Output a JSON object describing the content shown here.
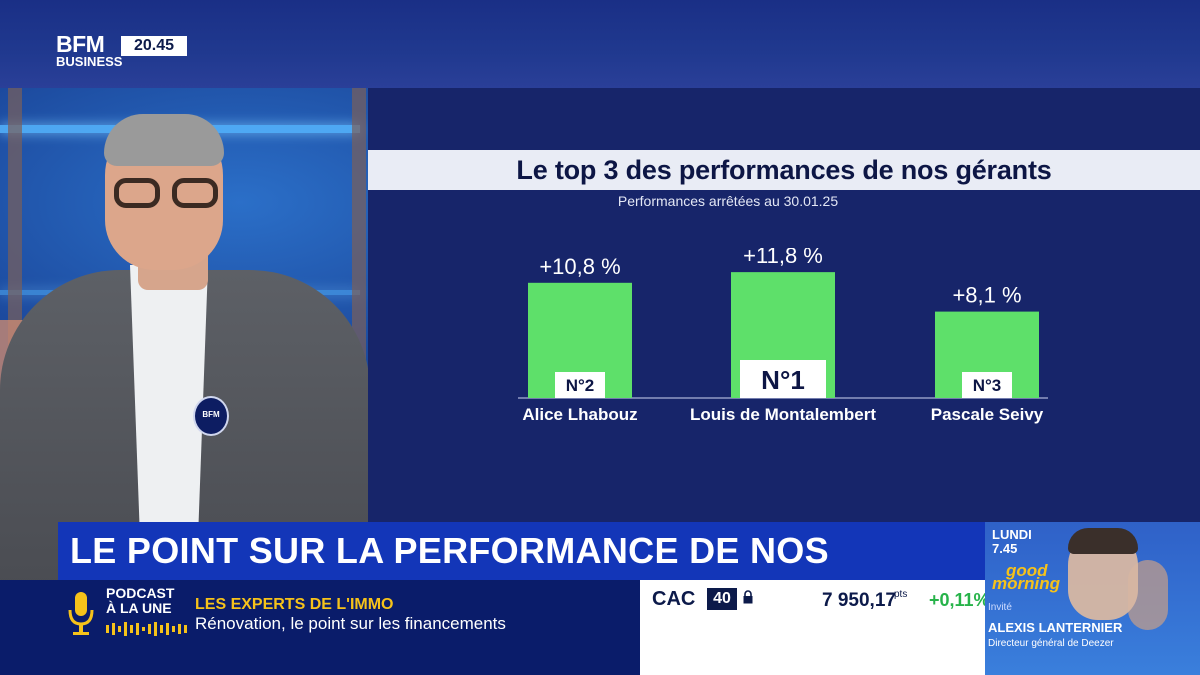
{
  "broadcast": {
    "logo_main": "BFM",
    "logo_sub": "BUSINESS",
    "clock": "20.45",
    "mic_logo": "BFM"
  },
  "chart_panel": {
    "title": "Le top 3 des performances de nos gérants",
    "subtitle": "Performances arrêtées au 30.01.25"
  },
  "chart_data": {
    "type": "bar",
    "title": "Le top 3 des performances de nos gérants",
    "subtitle": "Performances arrêtées au 30.01.25",
    "categories": [
      "Alice Lhabouz",
      "Louis de Montalembert",
      "Pascale Seivy"
    ],
    "values": [
      10.8,
      11.8,
      8.1
    ],
    "value_labels": [
      "+10,8 %",
      "+11,8 %",
      "+8,1 %"
    ],
    "ranks": [
      "N°2",
      "N°1",
      "N°3"
    ],
    "bar_color": "#5ee06a",
    "grid": false,
    "ylim": [
      0,
      12
    ]
  },
  "headline": "LE POINT SUR LA PERFORMANCE DE NOS GÉRANTS",
  "podcast": {
    "line1": "PODCAST",
    "line2": "À LA UNE",
    "show_title": "LES EXPERTS DE L'IMMO",
    "show_subtitle": "Rénovation, le point sur les financements"
  },
  "market": {
    "index_name": "CAC",
    "index_number": "40",
    "value": "7 950,17",
    "unit": "pts",
    "change": "+0,11%"
  },
  "promo": {
    "day": "LUNDI",
    "time": "7.45",
    "show_line1": "good",
    "show_line2": "morning",
    "guest_label": "Invité",
    "guest_name": "ALEXIS LANTERNIER",
    "guest_role": "Directeur général de Deezer"
  },
  "colors": {
    "brand_blue": "#1336b8",
    "panel_bg": "#17256a",
    "accent_yellow": "#f6c21a",
    "positive_green": "#27b34a"
  }
}
